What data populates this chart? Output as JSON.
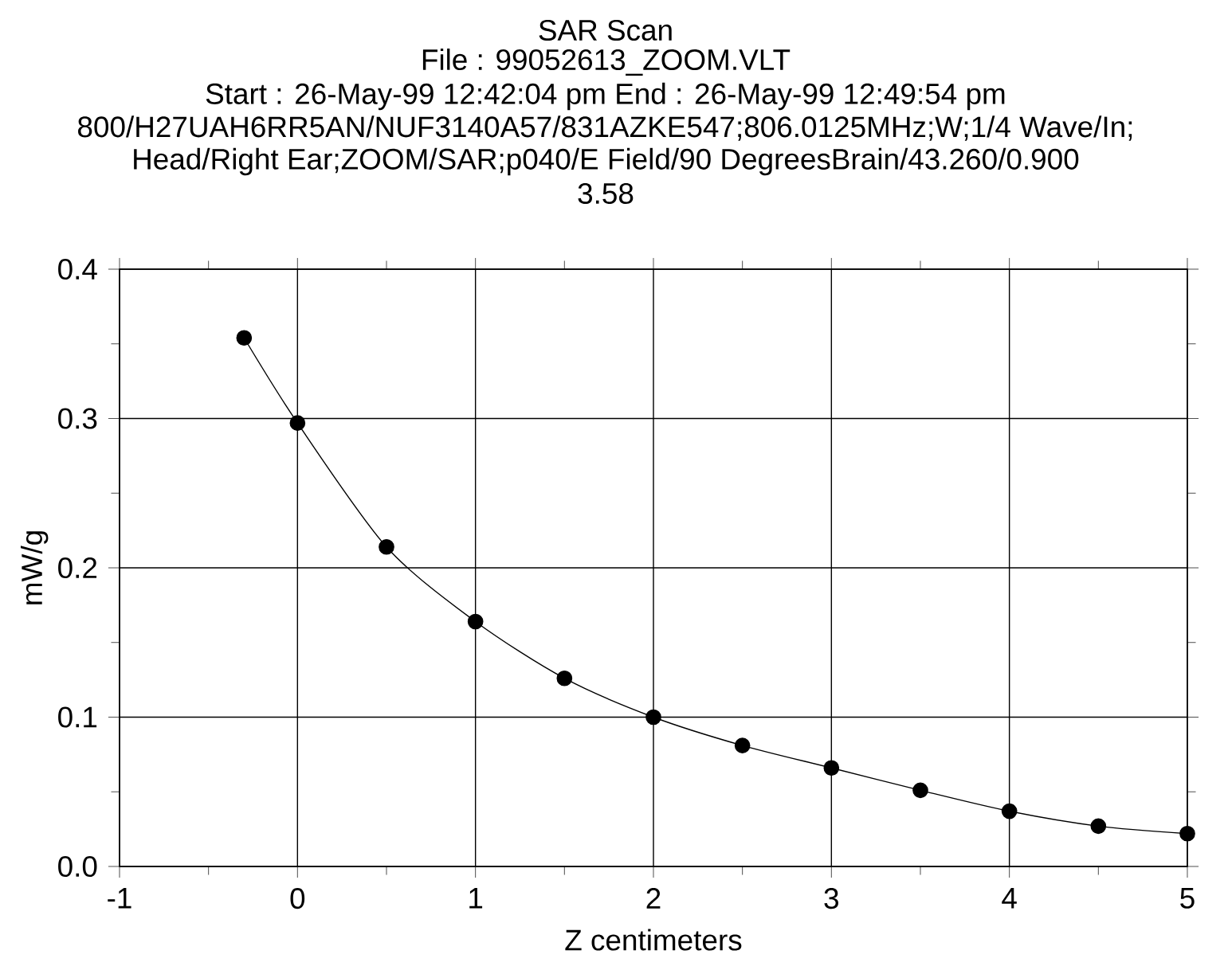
{
  "chart_data": {
    "type": "line",
    "title": "SAR Scan",
    "subtitle": "File : 99052613_ZOOM.VLT",
    "annotations": [
      "Start : 26-May-99 12:42:04 pm  End : 26-May-99 12:49:54 pm",
      "800/H27UAH6RR5AN/NUF3140A57/831AZKE547;806.0125MHz;W;1/4 Wave/In;",
      "Head/Right Ear;ZOOM/SAR;p040/E Field/90 DegreesBrain/43.260/0.900",
      "3.58"
    ],
    "xlabel": "Z centimeters",
    "ylabel": "mW/g",
    "x": [
      -0.3,
      0,
      0.5,
      1,
      1.5,
      2,
      2.5,
      3,
      3.5,
      4,
      4.5,
      5
    ],
    "values": [
      0.354,
      0.297,
      0.214,
      0.164,
      0.126,
      0.1,
      0.081,
      0.066,
      0.051,
      0.037,
      0.027,
      0.022
    ],
    "color": "#000000",
    "marker": "circle",
    "line_style": "solid",
    "grid": true,
    "xlim": [
      -1,
      5
    ],
    "xticks": [
      -1,
      0,
      1,
      2,
      3,
      4,
      5
    ],
    "ylim": [
      0,
      0.4
    ],
    "yticks": [
      {
        "value": 0,
        "label": "0.0"
      },
      0.1,
      0.2,
      0.3,
      0.4
    ]
  }
}
